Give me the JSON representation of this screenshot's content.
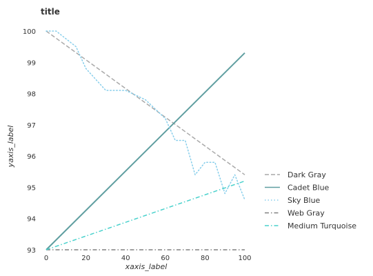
{
  "chart_data": {
    "type": "line",
    "title": "title",
    "xlabel": "xaxis_label",
    "ylabel": "yaxis_label",
    "xlim": [
      0,
      100
    ],
    "ylim": [
      93,
      100
    ],
    "x_ticks": [
      "0",
      "20",
      "40",
      "60",
      "80",
      "100"
    ],
    "y_ticks": [
      "93",
      "94",
      "95",
      "96",
      "97",
      "98",
      "99",
      "100"
    ],
    "grid": false,
    "legend_position": "right",
    "series": [
      {
        "name": "Dark Gray",
        "color": "#a9a9a9",
        "dash": "dashed",
        "x": [
          0,
          100
        ],
        "y": [
          100,
          95.4
        ]
      },
      {
        "name": "Cadet Blue",
        "color": "#5f9ea0",
        "dash": "solid",
        "x": [
          0,
          100
        ],
        "y": [
          93,
          99.3
        ]
      },
      {
        "name": "Sky Blue",
        "color": "#87ceeb",
        "dash": "dotted",
        "x": [
          0,
          5,
          15,
          20,
          30,
          40,
          50,
          60,
          65,
          70,
          75,
          80,
          85,
          90,
          95,
          100
        ],
        "y": [
          100,
          100,
          99.5,
          98.8,
          98.1,
          98.1,
          97.8,
          97.2,
          96.5,
          96.5,
          95.4,
          95.8,
          95.8,
          94.8,
          95.4,
          94.6
        ]
      },
      {
        "name": "Web Gray",
        "color": "#808080",
        "dash": "dashdot",
        "x": [
          0,
          100
        ],
        "y": [
          93,
          93
        ]
      },
      {
        "name": "Medium Turquoise",
        "color": "#48d1cc",
        "dash": "dashdot",
        "x": [
          0,
          100
        ],
        "y": [
          93,
          95.2
        ]
      }
    ]
  }
}
